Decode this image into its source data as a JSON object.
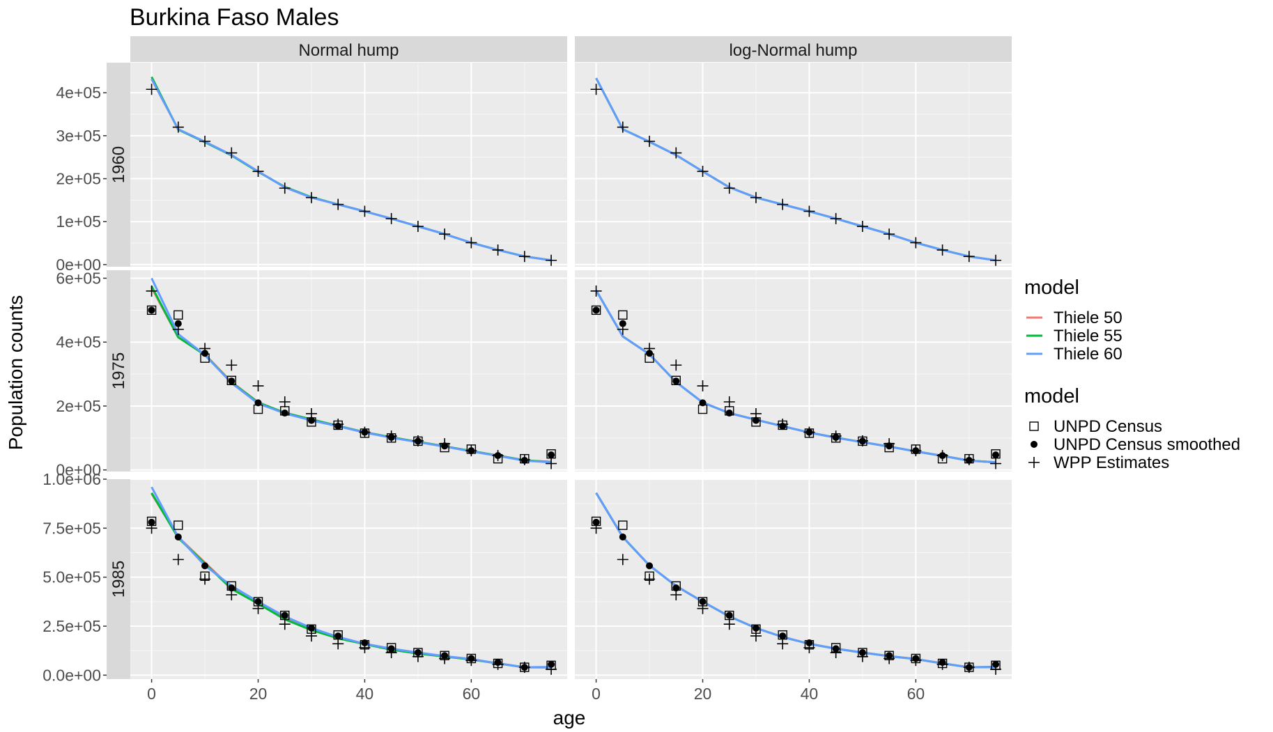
{
  "chart_data": {
    "type": "line",
    "title": "Burkina Faso Males",
    "xlabel": "age",
    "ylabel": "Population counts",
    "facet_cols": [
      "Normal hump",
      "log-Normal hump"
    ],
    "facet_rows": [
      "1960",
      "1975",
      "1985"
    ],
    "xlim": [
      -4,
      78
    ],
    "x_ticks": [
      0,
      20,
      40,
      60
    ],
    "x_tick_labels": [
      "0",
      "20",
      "40",
      "60"
    ],
    "ages": [
      0,
      5,
      10,
      15,
      20,
      25,
      30,
      35,
      40,
      45,
      50,
      55,
      60,
      65,
      70,
      75
    ],
    "rows": [
      {
        "year": "1960",
        "ylim": [
          -5000,
          470000
        ],
        "y_ticks": [
          0,
          100000,
          200000,
          300000,
          400000
        ],
        "y_tick_labels": [
          "0e+00",
          "1e+05",
          "2e+05",
          "3e+05",
          "4e+05"
        ],
        "points": {
          "UNPD Census": [],
          "UNPD Census smoothed": [],
          "WPP Estimates": [
            408000,
            320000,
            287000,
            260000,
            217000,
            178000,
            156000,
            140000,
            124000,
            107000,
            89000,
            71000,
            51000,
            34000,
            19000,
            10000
          ]
        },
        "fits": {
          "Normal hump": {
            "Thiele 50": [
              432000,
              315000,
              286000,
              255000,
              217000,
              180000,
              156000,
              140000,
              124000,
              107000,
              89000,
              71000,
              51000,
              34000,
              19000,
              10000
            ],
            "Thiele 55": [
              437000,
              314000,
              285000,
              254000,
              216000,
              181000,
              157000,
              140000,
              124000,
              107000,
              89000,
              71000,
              51000,
              34000,
              19000,
              10000
            ],
            "Thiele 60": [
              432000,
              315000,
              286000,
              255000,
              217000,
              180000,
              156000,
              140000,
              124000,
              107000,
              89000,
              71000,
              51000,
              34000,
              19000,
              10000
            ]
          },
          "log-Normal hump": {
            "Thiele 50": [
              434000,
              315000,
              286000,
              255000,
              217000,
              180000,
              156000,
              140000,
              124000,
              107000,
              89000,
              71000,
              51000,
              34000,
              19000,
              10000
            ],
            "Thiele 55": [
              434000,
              315000,
              286000,
              255000,
              217000,
              180000,
              156000,
              140000,
              124000,
              107000,
              89000,
              71000,
              51000,
              34000,
              19000,
              10000
            ],
            "Thiele 60": [
              434000,
              315000,
              286000,
              255000,
              217000,
              180000,
              156000,
              140000,
              124000,
              107000,
              89000,
              71000,
              51000,
              34000,
              19000,
              10000
            ]
          }
        }
      },
      {
        "year": "1975",
        "ylim": [
          -5000,
          625000
        ],
        "y_ticks": [
          0,
          200000,
          400000,
          600000
        ],
        "y_tick_labels": [
          "0e+00",
          "2e+05",
          "4e+05",
          "6e+05"
        ],
        "points": {
          "UNPD Census": [
            500000,
            485000,
            350000,
            280000,
            190000,
            185000,
            150000,
            140000,
            115000,
            100000,
            90000,
            70000,
            65000,
            35000,
            35000,
            50000
          ],
          "UNPD Census smoothed": [
            500000,
            458000,
            365000,
            278000,
            210000,
            178000,
            155000,
            137000,
            118000,
            102000,
            90000,
            75000,
            60000,
            45000,
            30000,
            47000
          ],
          "WPP Estimates": [
            560000,
            440000,
            380000,
            328000,
            263000,
            213000,
            176000,
            143000,
            118000,
            106000,
            91000,
            82000,
            60000,
            45000,
            32000,
            20000
          ]
        },
        "fits": {
          "Normal hump": {
            "Thiele 50": [
              570000,
              415000,
              362000,
              275000,
              212000,
              178000,
              158000,
              138000,
              118000,
              102000,
              88000,
              74000,
              59000,
              45000,
              30000,
              25000
            ],
            "Thiele 55": [
              575000,
              415000,
              360000,
              274000,
              211000,
              179000,
              158000,
              138000,
              118000,
              102000,
              88000,
              74000,
              59000,
              45000,
              30000,
              25000
            ],
            "Thiele 60": [
              600000,
              425000,
              360000,
              272000,
              208000,
              177000,
              155000,
              137000,
              117000,
              101000,
              87000,
              73000,
              58000,
              44000,
              29000,
              24000
            ]
          },
          "log-Normal hump": {
            "Thiele 50": [
              562000,
              418000,
              362000,
              275000,
              211000,
              178000,
              157000,
              137000,
              117000,
              101000,
              87000,
              73000,
              58000,
              44000,
              29000,
              24000
            ],
            "Thiele 55": [
              562000,
              418000,
              362000,
              275000,
              211000,
              178000,
              157000,
              137000,
              117000,
              101000,
              87000,
              73000,
              58000,
              44000,
              29000,
              24000
            ],
            "Thiele 60": [
              562000,
              418000,
              362000,
              275000,
              211000,
              178000,
              157000,
              137000,
              117000,
              101000,
              87000,
              73000,
              58000,
              44000,
              29000,
              24000
            ]
          }
        }
      },
      {
        "year": "1985",
        "ylim": [
          -20000,
          1000000
        ],
        "y_ticks": [
          0,
          250000,
          500000,
          750000,
          1000000
        ],
        "y_tick_labels": [
          "0.0e+00",
          "2.5e+05",
          "5.0e+05",
          "7.5e+05",
          "1.0e+06"
        ],
        "points": {
          "UNPD Census": [
            785000,
            765000,
            505000,
            455000,
            375000,
            305000,
            235000,
            205000,
            155000,
            140000,
            115000,
            100000,
            85000,
            60000,
            40000,
            50000
          ],
          "UNPD Census smoothed": [
            780000,
            705000,
            558000,
            445000,
            375000,
            305000,
            240000,
            200000,
            165000,
            135000,
            115000,
            100000,
            85000,
            65000,
            40000,
            55000
          ],
          "WPP Estimates": [
            750000,
            590000,
            490000,
            410000,
            340000,
            260000,
            200000,
            160000,
            140000,
            115000,
            95000,
            85000,
            75000,
            55000,
            40000,
            30000
          ]
        },
        "fits": {
          "Normal hump": {
            "Thiele 50": [
              925000,
              705000,
              575000,
              445000,
              370000,
              290000,
              235000,
              190000,
              160000,
              130000,
              110000,
              95000,
              80000,
              60000,
              40000,
              40000
            ],
            "Thiele 55": [
              930000,
              700000,
              570000,
              440000,
              365000,
              285000,
              230000,
              188000,
              158000,
              130000,
              110000,
              95000,
              80000,
              60000,
              40000,
              40000
            ],
            "Thiele 60": [
              960000,
              705000,
              560000,
              455000,
              375000,
              300000,
              240000,
              195000,
              160000,
              135000,
              115000,
              97000,
              82000,
              60000,
              40000,
              42000
            ]
          },
          "log-Normal hump": {
            "Thiele 50": [
              930000,
              705000,
              560000,
              455000,
              375000,
              300000,
              240000,
              195000,
              160000,
              135000,
              115000,
              97000,
              82000,
              60000,
              40000,
              42000
            ],
            "Thiele 55": [
              930000,
              705000,
              560000,
              455000,
              375000,
              300000,
              240000,
              195000,
              160000,
              135000,
              115000,
              97000,
              82000,
              60000,
              40000,
              42000
            ],
            "Thiele 60": [
              930000,
              705000,
              560000,
              455000,
              375000,
              300000,
              240000,
              195000,
              160000,
              135000,
              115000,
              97000,
              82000,
              60000,
              40000,
              42000
            ]
          }
        }
      }
    ],
    "line_series": [
      {
        "name": "Thiele 50",
        "color": "#F8766D"
      },
      {
        "name": "Thiele 55",
        "color": "#00BA38"
      },
      {
        "name": "Thiele 60",
        "color": "#619CFF"
      }
    ],
    "point_series": [
      {
        "name": "UNPD Census",
        "shape": "open-square"
      },
      {
        "name": "UNPD Census smoothed",
        "shape": "filled-circle"
      },
      {
        "name": "WPP Estimates",
        "shape": "plus"
      }
    ],
    "legend": {
      "position": "right",
      "line_title": "model",
      "point_title": "model"
    },
    "grid": true
  }
}
